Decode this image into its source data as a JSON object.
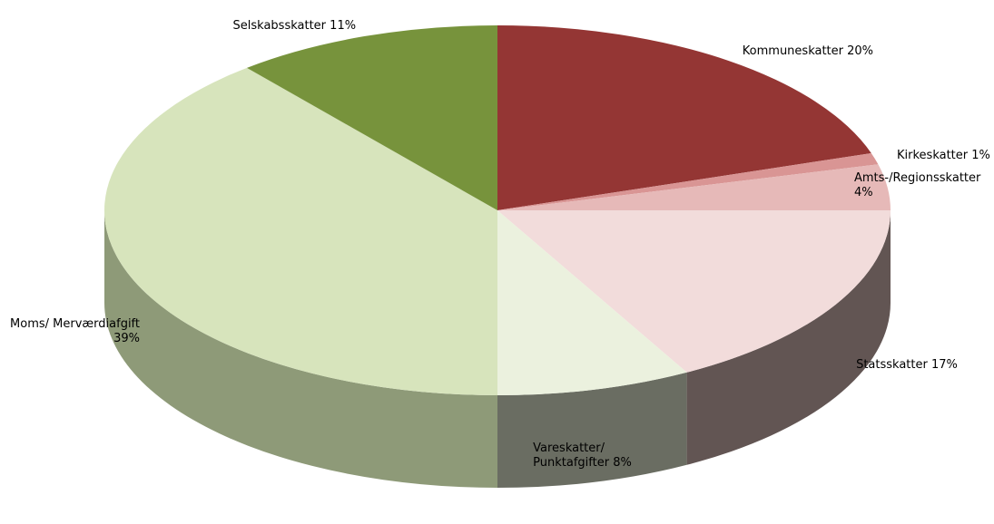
{
  "chart_data": {
    "type": "pie3d",
    "categories": [
      "Kommuneskatter",
      "Kirkeskatter",
      "Amts-/Regionsskatter",
      "Statsskatter",
      "Vareskatter/ Punktafgifter",
      "Moms/ Merværdiafgift",
      "Selskabsskatter"
    ],
    "values": [
      20,
      1,
      4,
      17,
      8,
      39,
      11
    ],
    "value_labels": [
      "20%",
      "1%",
      "4%",
      "17%",
      "8%",
      "39%",
      "11%"
    ],
    "colors": [
      "#943634",
      "#d99594",
      "#e6b9b8",
      "#f2dcdb",
      "#ebf1de",
      "#d7e4bc",
      "#77933c"
    ],
    "side_colors": [
      "#5e2322",
      "#8d5f5e",
      "#8a6f6e",
      "#625553",
      "#6a6d62",
      "#8e9a78",
      "#4c5e27"
    ]
  }
}
